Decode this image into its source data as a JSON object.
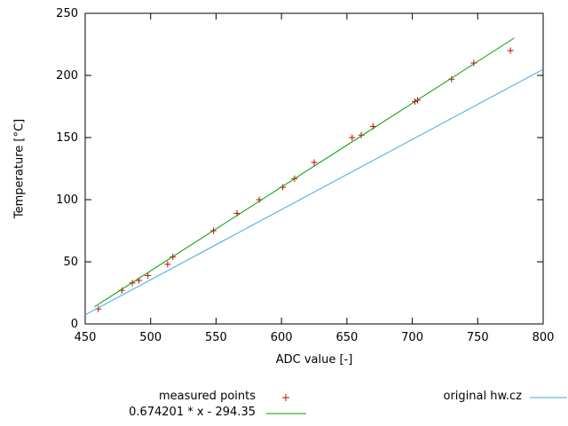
{
  "chart_data": {
    "type": "scatter",
    "title": "",
    "xlabel": "ADC value [-]",
    "ylabel": "Temperature [°C]",
    "xlim": [
      450,
      800
    ],
    "ylim": [
      0,
      250
    ],
    "xticks": [
      450,
      500,
      550,
      600,
      650,
      700,
      750,
      800
    ],
    "yticks": [
      0,
      50,
      100,
      150,
      200,
      250
    ],
    "grid": false,
    "legend_position": "below",
    "frame_color": "#000000",
    "series": [
      {
        "name": "measured points",
        "type": "points",
        "marker": "plus",
        "color": "#cc0000",
        "points": [
          [
            460,
            12
          ],
          [
            478,
            27
          ],
          [
            486,
            33
          ],
          [
            491,
            35
          ],
          [
            498,
            39
          ],
          [
            513,
            48
          ],
          [
            517,
            54
          ],
          [
            548,
            75
          ],
          [
            566,
            89
          ],
          [
            583,
            100
          ],
          [
            601,
            110
          ],
          [
            610,
            117
          ],
          [
            625,
            130
          ],
          [
            654,
            150
          ],
          [
            661,
            152
          ],
          [
            670,
            159
          ],
          [
            702,
            179
          ],
          [
            704,
            180
          ],
          [
            730,
            197
          ],
          [
            747,
            210
          ],
          [
            775,
            220
          ]
        ]
      },
      {
        "name": "0.674201 * x - 294.35",
        "type": "line",
        "color": "#009e00",
        "fit": {
          "slope": 0.674201,
          "intercept": -294.35
        },
        "x_range": [
          457,
          778
        ]
      },
      {
        "name": "original hw.cz",
        "type": "line",
        "color": "#44aadd",
        "fit": {
          "slope": 0.5647,
          "intercept": -246.8
        },
        "x_range": [
          450,
          800
        ]
      }
    ]
  }
}
